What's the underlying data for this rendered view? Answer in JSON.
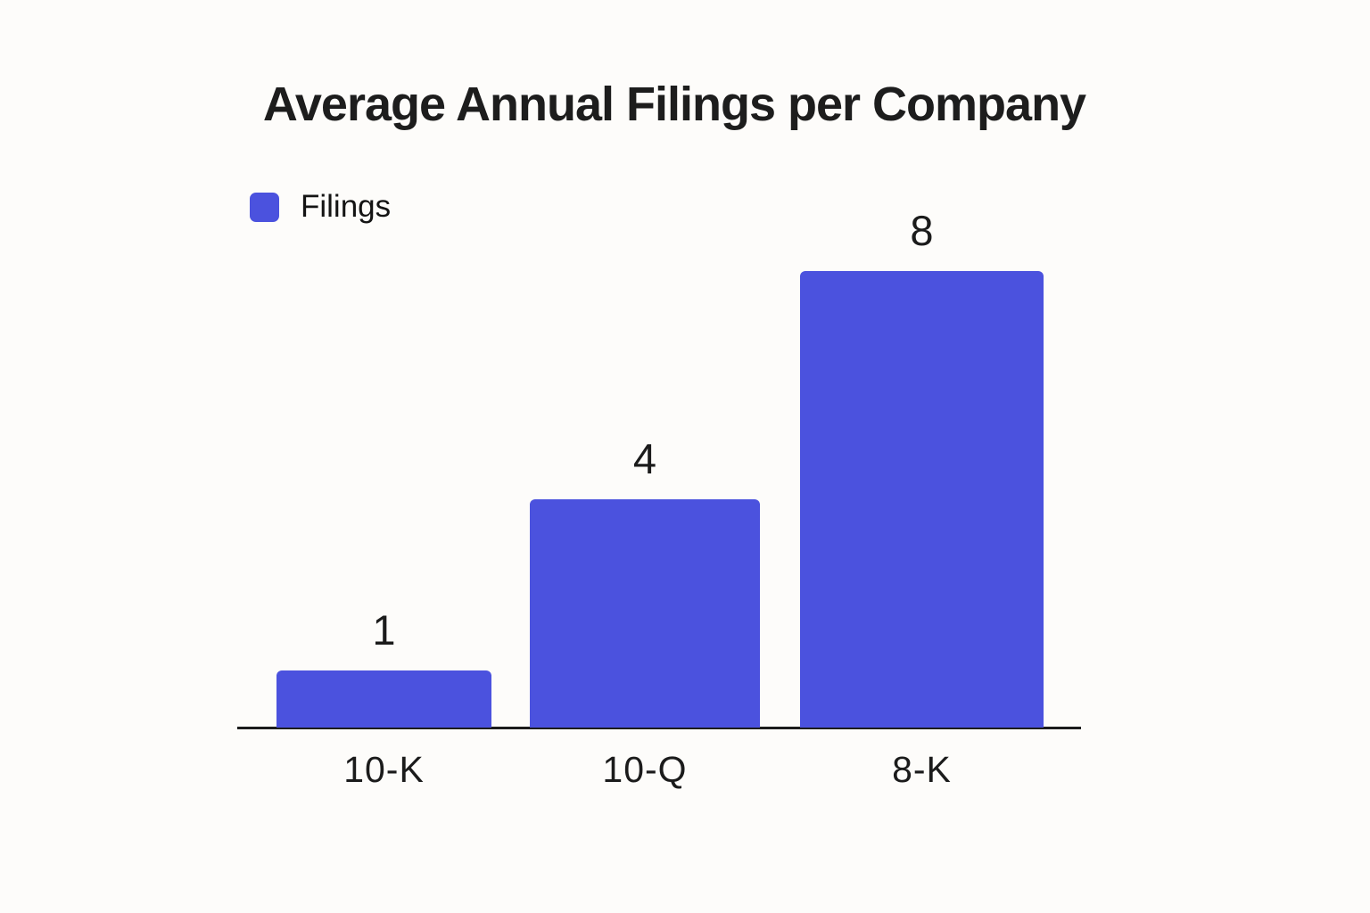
{
  "chart": {
    "legend": {
      "label": "Filings",
      "swatch_color": "#4b52de"
    }
  },
  "chart_data": {
    "type": "bar",
    "title": "Average Annual Filings per Company",
    "categories": [
      "10-K",
      "10-Q",
      "8-K"
    ],
    "values": [
      1,
      4,
      8
    ],
    "value_labels": [
      "1",
      "4",
      "8"
    ],
    "series_name": "Filings",
    "xlabel": "",
    "ylabel": "",
    "ylim": [
      0,
      8
    ],
    "grid": false,
    "legend_position": "top-left",
    "bar_color": "#4b52de",
    "axis_color": "#1c1c1c",
    "background_color": "#fdfcfa",
    "text_color": "#1b1b1b"
  }
}
